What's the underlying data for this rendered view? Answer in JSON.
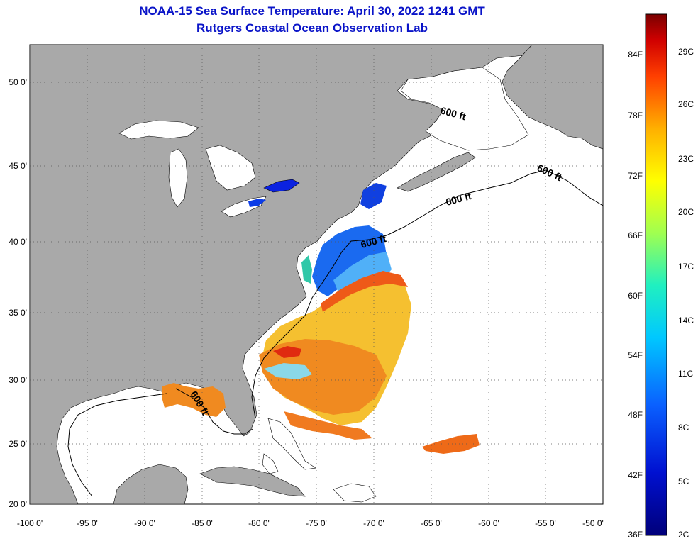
{
  "title": "NOAA-15 Sea Surface Temperature:  April 30, 2022 1241 GMT",
  "subtitle": "Rutgers Coastal Ocean Observation Lab",
  "lon_ticks": [
    "-100 0'",
    "-95 0'",
    "-90 0'",
    "-85 0'",
    "-80 0'",
    "-75 0'",
    "-70 0'",
    "-65 0'",
    "-60 0'",
    "-55 0'",
    "-50 0'"
  ],
  "lat_ticks": [
    "50 0'",
    "45 0'",
    "40 0'",
    "35 0'",
    "30 0'",
    "25 0'",
    "20 0'"
  ],
  "contour_labels": [
    "600 ft",
    "600 ft",
    "600 ft",
    "600 ft",
    "600 ft"
  ],
  "colorbar": {
    "fahrenheit": [
      "84F",
      "78F",
      "72F",
      "66F",
      "60F",
      "54F",
      "48F",
      "42F",
      "36F"
    ],
    "celsius": [
      "29C",
      "26C",
      "23C",
      "20C",
      "17C",
      "14C",
      "11C",
      "8C",
      "5C",
      "2C"
    ]
  },
  "colors": {
    "land": "#a9a9a9",
    "title": "#0a14c8",
    "ocean": "#ffffff"
  }
}
